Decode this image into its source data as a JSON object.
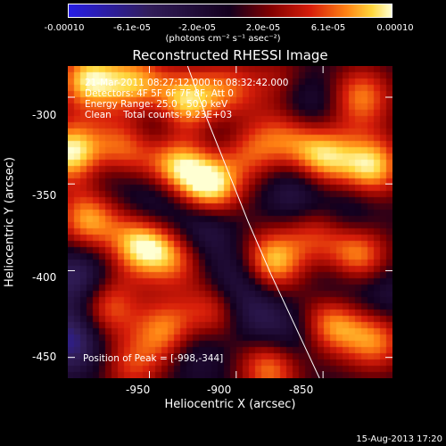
{
  "colors": {
    "background": "#000000",
    "foreground": "#ffffff",
    "low": "#3a2ee0",
    "mid": "#000000",
    "high": "#fff27a"
  },
  "colorbar": {
    "ticks": [
      "-0.00010",
      "-6.1e-05",
      "-2.0e-05",
      "2.0e-05",
      "6.1e-05",
      "0.00010"
    ],
    "unit": "(photons cm⁻² s⁻¹ asec⁻²)"
  },
  "chart_data": {
    "type": "heatmap",
    "title": "Reconstructed RHESSI Image",
    "xlabel": "Heliocentric X (arcsec)",
    "ylabel": "Heliocentric Y (arcsec)",
    "xlim": [
      -997,
      -810
    ],
    "ylim": [
      -462,
      -282
    ],
    "xticks": [
      "-950",
      "-900",
      "-850"
    ],
    "yticks": [
      "-300",
      "-350",
      "-400",
      "-450"
    ],
    "colorbar_range": [
      -0.0001,
      0.0001
    ],
    "limb_curve": {
      "x": [
        -928,
        -917,
        -905,
        -893,
        -880,
        -866,
        -852
      ],
      "y": [
        -282,
        -312,
        -342,
        -372,
        -402,
        -432,
        -462
      ]
    },
    "peak": {
      "x": -998,
      "y": -344
    },
    "blobs": [
      {
        "x": -985,
        "y": -290,
        "v": 0.9
      },
      {
        "x": -958,
        "y": -292,
        "v": 0.75
      },
      {
        "x": -930,
        "y": -303,
        "v": 0.9
      },
      {
        "x": -905,
        "y": -297,
        "v": 0.6
      },
      {
        "x": -875,
        "y": -290,
        "v": 0.35
      },
      {
        "x": -995,
        "y": -332,
        "v": 1.0
      },
      {
        "x": -965,
        "y": -330,
        "v": 0.7
      },
      {
        "x": -935,
        "y": -340,
        "v": 0.85
      },
      {
        "x": -915,
        "y": -352,
        "v": 1.0
      },
      {
        "x": -893,
        "y": -330,
        "v": 0.6
      },
      {
        "x": -870,
        "y": -322,
        "v": 0.55
      },
      {
        "x": -850,
        "y": -335,
        "v": 0.85
      },
      {
        "x": -828,
        "y": -300,
        "v": 0.7
      },
      {
        "x": -822,
        "y": -340,
        "v": 0.9
      },
      {
        "x": -985,
        "y": -370,
        "v": 0.8
      },
      {
        "x": -955,
        "y": -385,
        "v": 0.9
      },
      {
        "x": -935,
        "y": -392,
        "v": 0.6
      },
      {
        "x": -880,
        "y": -395,
        "v": 0.9
      },
      {
        "x": -855,
        "y": -378,
        "v": 0.5
      },
      {
        "x": -830,
        "y": -392,
        "v": 0.8
      },
      {
        "x": -975,
        "y": -420,
        "v": 0.7
      },
      {
        "x": -940,
        "y": -435,
        "v": 0.75
      },
      {
        "x": -912,
        "y": -423,
        "v": 0.6
      },
      {
        "x": -845,
        "y": -430,
        "v": 0.8
      },
      {
        "x": -820,
        "y": -440,
        "v": 0.7
      },
      {
        "x": -880,
        "y": -455,
        "v": 0.8
      },
      {
        "x": -960,
        "y": -455,
        "v": 0.5
      },
      {
        "x": -920,
        "y": -375,
        "v": -0.5
      },
      {
        "x": -900,
        "y": -405,
        "v": -0.45
      },
      {
        "x": -945,
        "y": -360,
        "v": -0.4
      },
      {
        "x": -865,
        "y": -355,
        "v": -0.45
      },
      {
        "x": -975,
        "y": -345,
        "v": -0.3
      },
      {
        "x": -945,
        "y": -315,
        "v": -0.35
      },
      {
        "x": -840,
        "y": -410,
        "v": -0.35
      },
      {
        "x": -890,
        "y": -425,
        "v": -0.4
      },
      {
        "x": -925,
        "y": -445,
        "v": -0.35
      },
      {
        "x": -990,
        "y": -405,
        "v": -0.6
      },
      {
        "x": -995,
        "y": -440,
        "v": -0.7
      },
      {
        "x": -835,
        "y": -365,
        "v": -0.3
      },
      {
        "x": -860,
        "y": -305,
        "v": -0.4
      },
      {
        "x": -905,
        "y": -320,
        "v": -0.3
      },
      {
        "x": -815,
        "y": -415,
        "v": -0.3
      },
      {
        "x": -870,
        "y": -440,
        "v": -0.4
      }
    ]
  },
  "info": {
    "line1": "21-Mar-2011 08:27:12.000 to 08:32:42.000",
    "line2": "Detectors: 4F 5F 6F 7F 8F, Att 0",
    "line3": "Energy Range: 25.0 - 50.0 keV",
    "line4": "Clean    Total counts: 9.23E+03",
    "peak": "Position of Peak = [-998,-344]"
  },
  "footer": {
    "date": "15-Aug-2013 17:20"
  }
}
